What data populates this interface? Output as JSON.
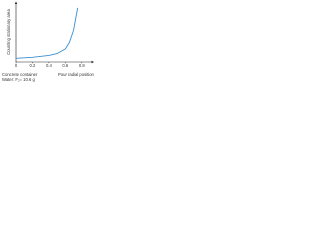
{
  "chart_data": {
    "type": "line",
    "y_label": "Counting stationary area",
    "x_label": "Pour radial position",
    "notes": [
      "Concrete container",
      "Water: F₂= 10.6 g"
    ],
    "x": [
      0,
      0.2,
      0.4,
      0.5,
      0.6,
      0.65,
      0.7,
      0.75
    ],
    "series": [
      {
        "color": "#3a8fd0",
        "values": [
          0.4,
          0.5,
          0.7,
          0.9,
          1.4,
          2.1,
          3.4,
          5.8
        ]
      }
    ],
    "xlim": [
      0,
      0.9
    ],
    "xticks": [
      0,
      0.2,
      0.4,
      0.6,
      0.8
    ],
    "ylim": [
      0,
      6
    ]
  }
}
